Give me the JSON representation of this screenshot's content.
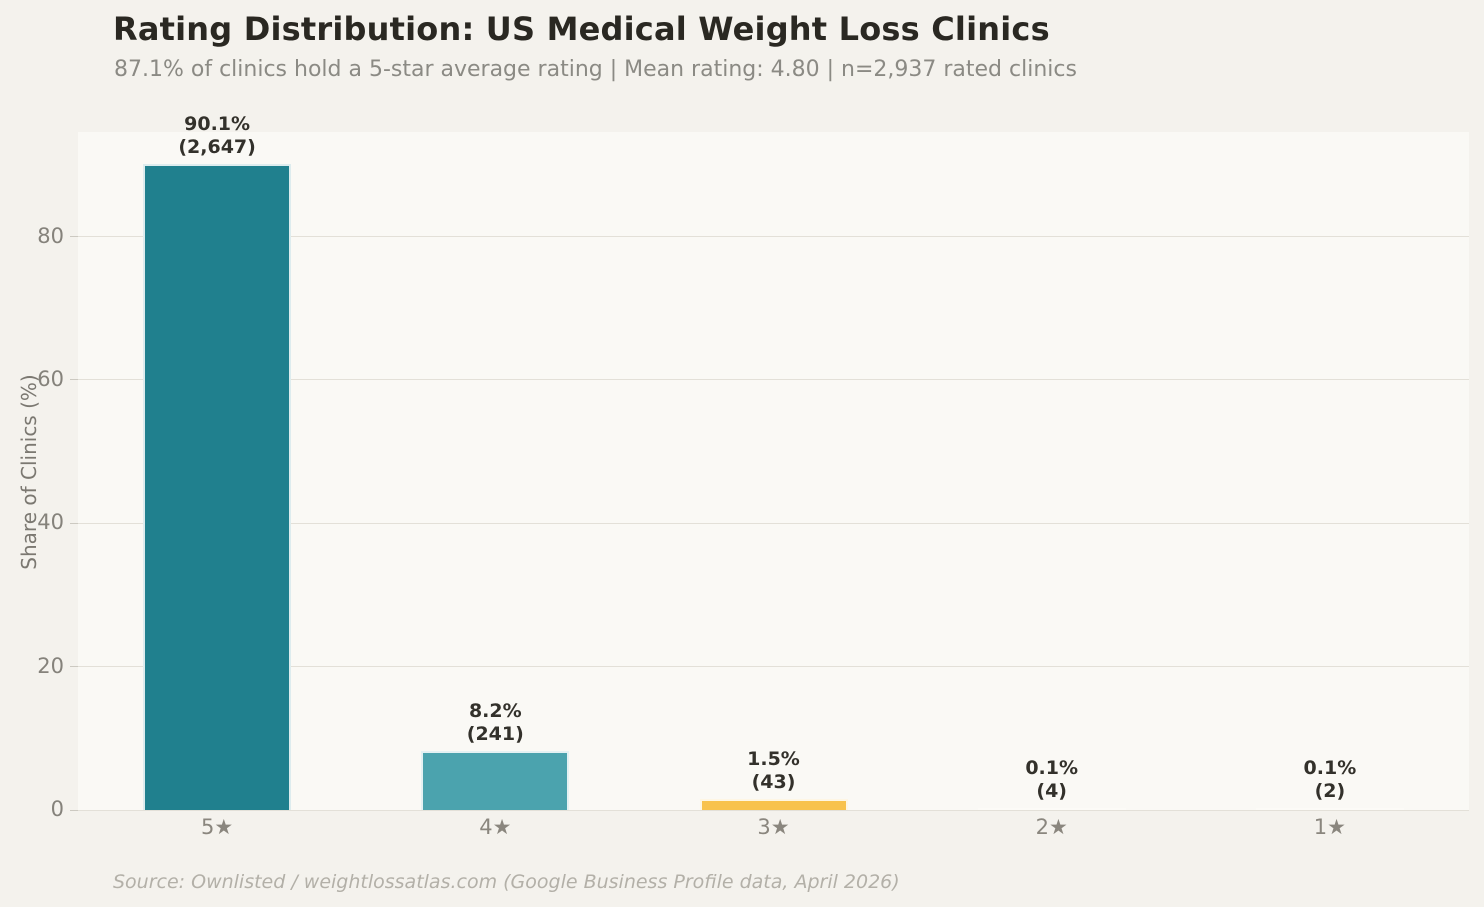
{
  "header": {
    "title": "Rating Distribution: US Medical Weight Loss Clinics",
    "subtitle": "87.1% of clinics hold a 5-star average rating | Mean rating: 4.80 | n=2,937 rated clinics"
  },
  "footer": {
    "source": "Source: Ownlisted / weightlossatlas.com (Google Business Profile data, April 2026)"
  },
  "colors": {
    "page_background": "#f4f2ed",
    "plot_background": "#faf9f5",
    "gridline": "#e3e0d8",
    "title_text": "#2a2822",
    "muted_text": "#8b8a84"
  },
  "chart_data": {
    "type": "bar",
    "title": "Rating Distribution: US Medical Weight Loss Clinics",
    "subtitle": "87.1% of clinics hold a 5-star average rating | Mean rating: 4.80 | n=2,937 rated clinics",
    "categories": [
      "5★",
      "4★",
      "3★",
      "2★",
      "1★"
    ],
    "values": [
      90.1,
      8.2,
      1.5,
      0.1,
      0.1
    ],
    "counts": [
      2647,
      241,
      43,
      4,
      2
    ],
    "value_labels": [
      "90.1%",
      "8.2%",
      "1.5%",
      "0.1%",
      "0.1%"
    ],
    "count_labels": [
      "(2,647)",
      "(241)",
      "(43)",
      "(4)",
      "(2)"
    ],
    "bar_colors": [
      "#20808e",
      "#4ba3ae",
      "#f8c24d",
      "#fcfbf7",
      "#fcfbf7"
    ],
    "xlabel": "",
    "ylabel": "Share of Clinics (%)",
    "yticks": [
      0,
      20,
      40,
      60,
      80
    ],
    "ytick_labels": [
      "0",
      "20",
      "40",
      "60",
      "80"
    ],
    "ylim": [
      0,
      94.6
    ],
    "grid": true,
    "legend": false,
    "source": "Source: Ownlisted / weightlossatlas.com (Google Business Profile data, April 2026)"
  }
}
